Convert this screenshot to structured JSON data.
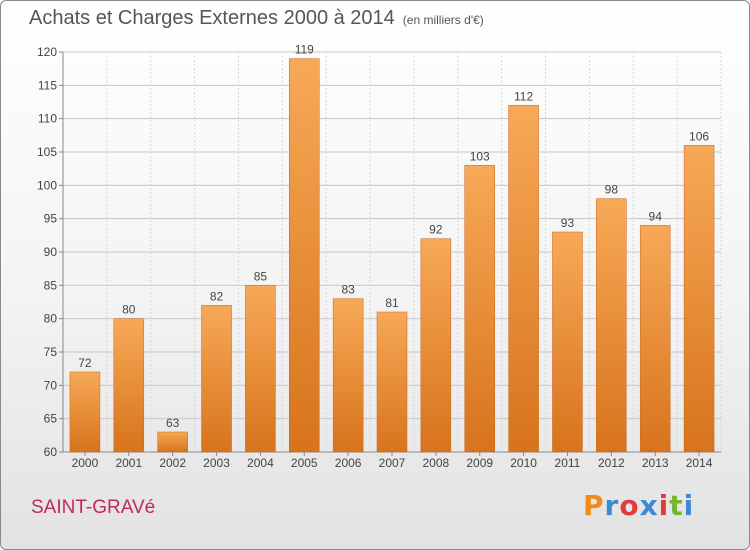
{
  "title": "Achats et Charges Externes 2000 à 2014",
  "title_unit": "(en milliers d'€)",
  "commune": "SAINT-GRAVé",
  "logo": {
    "letters": [
      "P",
      "r",
      "o",
      "x",
      "i",
      "t",
      "i"
    ],
    "colors": [
      "#f08c1e",
      "#3c8ad1",
      "#e23b3b",
      "#3c8ad1",
      "#e23b3b",
      "#74b72e",
      "#3c8ad1"
    ]
  },
  "chart_data": {
    "type": "bar",
    "title": "Achats et Charges Externes 2000 à 2014",
    "categories": [
      "2000",
      "2001",
      "2002",
      "2003",
      "2004",
      "2005",
      "2006",
      "2007",
      "2008",
      "2009",
      "2010",
      "2011",
      "2012",
      "2013",
      "2014"
    ],
    "values": [
      72,
      80,
      63,
      82,
      85,
      119,
      83,
      81,
      92,
      103,
      112,
      93,
      98,
      94,
      106
    ],
    "ylim": [
      60,
      120
    ],
    "yticks": [
      60,
      65,
      70,
      75,
      80,
      85,
      90,
      95,
      100,
      105,
      110,
      115,
      120
    ],
    "grid": true,
    "bar_color": "#f0913a",
    "xlabel": "",
    "ylabel": ""
  }
}
